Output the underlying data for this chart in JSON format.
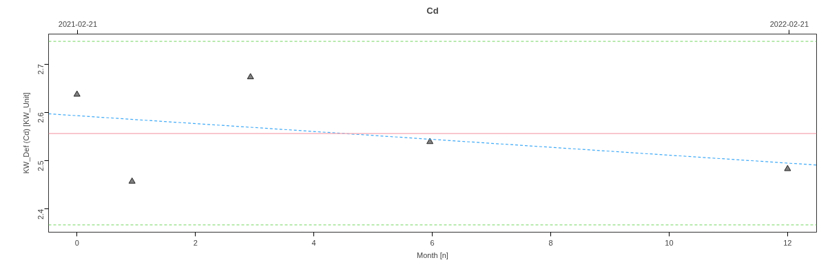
{
  "chart_data": {
    "type": "scatter",
    "title": "Cd",
    "xlabel": "Month [n]",
    "ylabel": "KW_Def (Cd) [KW_Unit]",
    "series": [
      {
        "color": "#808080",
        "x": [
          0,
          0.93,
          2.93,
          5.96,
          12
        ],
        "values": [
          2.637,
          2.457,
          2.673,
          2.539,
          2.483
        ],
        "marker": "triangle"
      },
      {
        "type": "line",
        "color": "#3fa9f5",
        "x": [
          -0.48,
          12.49
        ],
        "values": [
          2.597,
          2.491
        ],
        "line_style": "dashed"
      }
    ],
    "xlim": [
      -0.48,
      12.49
    ],
    "xticks": [
      0,
      2,
      4,
      6,
      8,
      10,
      12
    ],
    "x2lim": [
      "2021-02-06",
      "2022-03-07"
    ],
    "x2ticks": [
      "2021-02-21",
      "2022-02-21"
    ],
    "ylim": [
      2.352,
      2.762
    ],
    "yticks": [
      2.4,
      2.5,
      2.6,
      2.7
    ],
    "ref_lines": [
      {
        "axis": "y",
        "value": 2.747,
        "color": "#90dd80",
        "line_style": "dashed"
      },
      {
        "axis": "y",
        "value": 2.556,
        "color": "#f4a6b0",
        "line_style": "solid"
      },
      {
        "axis": "y",
        "value": 2.367,
        "color": "#90dd80",
        "line_style": "dashed"
      }
    ],
    "grid": false
  }
}
